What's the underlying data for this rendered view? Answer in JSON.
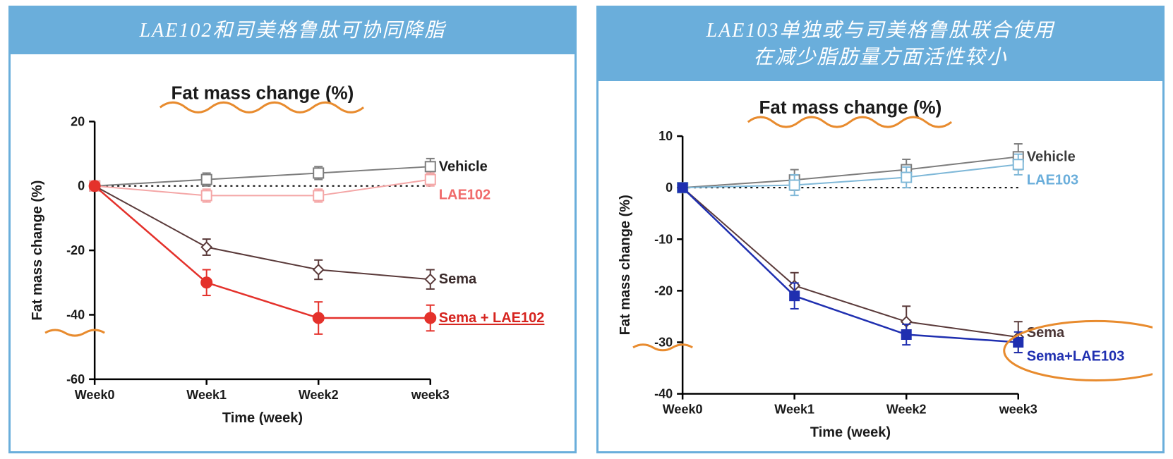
{
  "panels": [
    {
      "id": "left",
      "header": "LAE102和司美格鲁肽可协同降脂",
      "chart": {
        "type": "line",
        "title": "Fat mass change (%)",
        "title_fontsize": 26,
        "xlabel": "Time (week)",
        "ylabel": "Fat mass change (%)",
        "label_fontsize": 20,
        "categories": [
          "Week0",
          "Week1",
          "Week2",
          "week3"
        ],
        "ylim": [
          -60,
          20
        ],
        "ytick_step": 20,
        "yticks": [
          -60,
          -40,
          -20,
          0,
          20
        ],
        "background_color": "#ffffff",
        "zero_line_style": "dotted",
        "zero_line_color": "#000000",
        "axis_color": "#000000",
        "annotation_color": "#e88b2e",
        "series": [
          {
            "name": "Vehicle",
            "label": "Vehicle",
            "color": "#7d7d7d",
            "label_color": "#1a1a1a",
            "marker": "square-open",
            "marker_size": 7,
            "line_width": 2,
            "values": [
              0,
              2,
              4,
              6
            ],
            "errors": [
              0,
              2,
              2,
              2.5
            ],
            "label_pos": {
              "x_offset": 12,
              "y_index": 3
            }
          },
          {
            "name": "LAE102",
            "label": "LAE102",
            "color": "#f4a6a6",
            "label_color": "#f06b6b",
            "marker": "square-open",
            "marker_size": 7,
            "line_width": 2,
            "values": [
              0,
              -3,
              -3,
              2
            ],
            "errors": [
              0,
              2,
              2,
              2
            ],
            "label_pos": {
              "x_offset": 12,
              "y_index": 3,
              "y_nudge": 22
            }
          },
          {
            "name": "Sema",
            "label": "Sema",
            "color": "#5a3a3a",
            "label_color": "#3a2a2a",
            "marker": "diamond-open",
            "marker_size": 7,
            "line_width": 2,
            "values": [
              0,
              -19,
              -26,
              -29
            ],
            "errors": [
              0,
              2.5,
              3,
              3
            ],
            "label_pos": {
              "x_offset": 12,
              "y_index": 3
            }
          },
          {
            "name": "SemaLAE102",
            "label": "Sema + LAE102",
            "color": "#e4312b",
            "label_color": "#d6241f",
            "marker": "circle-filled",
            "marker_size": 8,
            "line_width": 2.5,
            "values": [
              0,
              -30,
              -41,
              -41
            ],
            "errors": [
              0,
              4,
              5,
              4
            ],
            "label_pos": {
              "x_offset": 12,
              "y_index": 3
            },
            "label_underline": true,
            "label_bold": true
          }
        ],
        "squiggles": [
          {
            "type": "title-underline"
          },
          {
            "type": "y-break"
          }
        ]
      }
    },
    {
      "id": "right",
      "header": "LAE103单独或与司美格鲁肽联合使用\n在减少脂肪量方面活性较小",
      "chart": {
        "type": "line",
        "title": "Fat mass change (%)",
        "title_fontsize": 26,
        "xlabel": "Time (week)",
        "ylabel": "Fat mass change (%)",
        "label_fontsize": 20,
        "categories": [
          "Week0",
          "Week1",
          "Week2",
          "week3"
        ],
        "ylim": [
          -40,
          10
        ],
        "ytick_step": 10,
        "yticks": [
          -40,
          -30,
          -20,
          -10,
          0,
          10
        ],
        "background_color": "#ffffff",
        "zero_line_style": "dotted",
        "zero_line_color": "#000000",
        "axis_color": "#000000",
        "annotation_color": "#e88b2e",
        "series": [
          {
            "name": "Vehicle",
            "label": "Vehicle",
            "color": "#7d7d7d",
            "label_color": "#3a3a3a",
            "marker": "square-open",
            "marker_size": 7,
            "line_width": 2,
            "values": [
              0,
              1.5,
              3.5,
              6
            ],
            "errors": [
              0,
              2,
              2,
              2.5
            ],
            "label_pos": {
              "x_offset": 12,
              "y_index": 3
            }
          },
          {
            "name": "LAE103",
            "label": "LAE103",
            "color": "#7fb8d8",
            "label_color": "#6aaedb",
            "marker": "square-open",
            "marker_size": 7,
            "line_width": 2,
            "values": [
              0,
              0.5,
              2,
              4.5
            ],
            "errors": [
              0,
              2,
              2,
              2
            ],
            "label_pos": {
              "x_offset": 12,
              "y_index": 3,
              "y_nudge": 22
            }
          },
          {
            "name": "Sema",
            "label": "Sema",
            "color": "#5a3a3a",
            "label_color": "#4a3535",
            "marker": "diamond-open",
            "marker_size": 7,
            "line_width": 2,
            "values": [
              0,
              -19,
              -26,
              -29
            ],
            "errors": [
              0,
              2.5,
              3,
              3
            ],
            "label_pos": {
              "x_offset": 12,
              "y_index": 3,
              "y_nudge": -6
            }
          },
          {
            "name": "SemaLAE103",
            "label": "Sema+LAE103",
            "color": "#1f2fb0",
            "label_color": "#1f2fb0",
            "marker": "square-filled",
            "marker_size": 7,
            "line_width": 2.5,
            "values": [
              0,
              -21,
              -28.5,
              -30
            ],
            "errors": [
              0,
              2.5,
              2,
              2
            ],
            "label_pos": {
              "x_offset": 12,
              "y_index": 3,
              "y_nudge": 20
            }
          }
        ],
        "squiggles": [
          {
            "type": "title-underline"
          },
          {
            "type": "y-break"
          },
          {
            "type": "circle-labels"
          }
        ]
      }
    }
  ]
}
